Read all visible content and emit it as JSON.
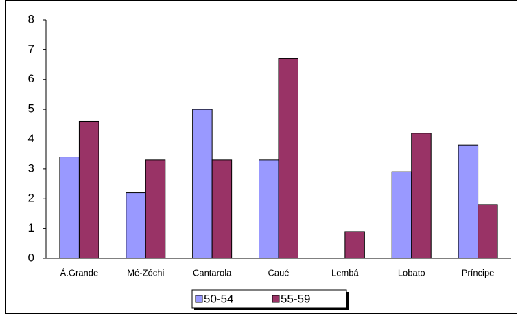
{
  "chart_data": {
    "type": "bar",
    "categories": [
      "Á.Grande",
      "Mé-Zóchi",
      "Cantarola",
      "Caué",
      "Lembá",
      "Lobato",
      "Príncipe"
    ],
    "series": [
      {
        "name": "50-54",
        "color": "#9999ff",
        "values": [
          3.4,
          2.2,
          5.0,
          3.3,
          null,
          2.9,
          3.8
        ]
      },
      {
        "name": "55-59",
        "color": "#993366",
        "values": [
          4.6,
          3.3,
          3.3,
          6.7,
          0.9,
          4.2,
          1.8
        ]
      }
    ],
    "ylim": [
      0,
      8
    ],
    "yticks": [
      0,
      1,
      2,
      3,
      4,
      5,
      6,
      7,
      8
    ],
    "legend": "bottom"
  }
}
